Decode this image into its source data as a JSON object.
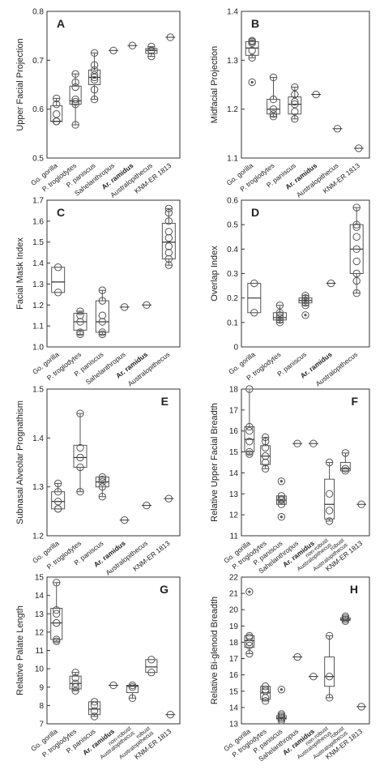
{
  "chart_data": [
    {
      "type": "box",
      "panel": "A",
      "label_corner": "upper left",
      "ylabel": "Upper Facial Projection",
      "bold_category": 4,
      "categories": [
        "Go. gorilla",
        "P. troglodytes",
        "P. paniscus",
        "Sahelanthropus",
        "Ar. ramidus",
        "Australopithecus",
        "KNM-ER 1813"
      ],
      "ylim": [
        0.5,
        0.8
      ],
      "yticks": [
        0.5,
        0.6,
        0.7,
        0.8
      ],
      "groups": [
        {
          "points": [
            0.575,
            0.575,
            0.575,
            0.59,
            0.61,
            0.622
          ],
          "box": [
            0.575,
            0.575,
            0.575,
            0.607,
            0.622
          ]
        },
        {
          "points": [
            0.568,
            0.61,
            0.615,
            0.62,
            0.645,
            0.655,
            0.672
          ],
          "box": [
            0.568,
            0.61,
            0.617,
            0.647,
            0.672
          ]
        },
        {
          "points": [
            0.62,
            0.64,
            0.66,
            0.665,
            0.67,
            0.68,
            0.69,
            0.715
          ],
          "box": [
            0.62,
            0.65,
            0.665,
            0.68,
            0.715
          ]
        },
        {
          "points": [
            0.72
          ]
        },
        {
          "points": [
            0.73
          ]
        },
        {
          "points": [
            0.708,
            0.72,
            0.72,
            0.728
          ],
          "box": [
            0.708,
            0.714,
            0.72,
            0.724,
            0.728
          ]
        },
        {
          "points": [
            0.747
          ]
        }
      ]
    },
    {
      "type": "box",
      "panel": "B",
      "label_corner": "upper left",
      "ylabel": "Midfacial Projection",
      "bold_category": 3,
      "categories": [
        "Go. gorilla",
        "P. troglodytes",
        "P. paniscus",
        "Ar. ramidus",
        "Australopithecus",
        "KNM-ER 1813"
      ],
      "ylim": [
        1.1,
        1.4
      ],
      "yticks": [
        1.1,
        1.2,
        1.3,
        1.4
      ],
      "groups": [
        {
          "points": [
            1.305,
            1.32,
            1.335,
            1.338,
            1.34
          ],
          "outliers": [
            1.255
          ],
          "box": [
            1.305,
            1.31,
            1.325,
            1.338,
            1.34
          ]
        },
        {
          "points": [
            1.185,
            1.19,
            1.2,
            1.22,
            1.265
          ],
          "box": [
            1.185,
            1.19,
            1.2,
            1.22,
            1.265
          ]
        },
        {
          "points": [
            1.18,
            1.195,
            1.21,
            1.215,
            1.23,
            1.245
          ],
          "box": [
            1.18,
            1.19,
            1.21,
            1.225,
            1.245
          ]
        },
        {
          "points": [
            1.23
          ]
        },
        {
          "points": [
            1.16
          ]
        },
        {
          "points": [
            1.12
          ]
        }
      ]
    },
    {
      "type": "box",
      "panel": "C",
      "label_corner": "upper left",
      "ylabel": "Facial Mask Index",
      "bold_category": 4,
      "categories": [
        "Go. gorilla",
        "P. troglodytes",
        "P. paniscus",
        "Sahelanthropus",
        "Ar. ramidus",
        "Australopithecus"
      ],
      "ylim": [
        1.0,
        1.7
      ],
      "yticks": [
        {
          "value": 1.0,
          "label": "1.0"
        },
        1.1,
        1.2,
        1.3,
        1.4,
        1.5,
        1.6,
        1.7
      ],
      "groups": [
        {
          "points": [
            1.26,
            1.38
          ],
          "box": [
            1.26,
            1.26,
            1.31,
            1.38,
            1.38
          ]
        },
        {
          "points": [
            1.06,
            1.07,
            1.12,
            1.15,
            1.17
          ],
          "box": [
            1.06,
            1.08,
            1.12,
            1.16,
            1.17
          ]
        },
        {
          "points": [
            1.06,
            1.07,
            1.12,
            1.15,
            1.22,
            1.27
          ],
          "box": [
            1.06,
            1.07,
            1.12,
            1.22,
            1.27
          ]
        },
        {
          "points": [
            1.19
          ]
        },
        {
          "points": [
            1.2
          ]
        },
        {
          "points": [
            1.39,
            1.42,
            1.45,
            1.48,
            1.52,
            1.55,
            1.6,
            1.64,
            1.66
          ],
          "box": [
            1.39,
            1.42,
            1.5,
            1.59,
            1.66
          ]
        }
      ]
    },
    {
      "type": "box",
      "panel": "D",
      "label_corner": "upper left",
      "ylabel": "Overlap Index",
      "bold_category": 3,
      "categories": [
        "Go. gorilla",
        "P. troglodytes",
        "P. paniscus",
        "Ar. ramidus",
        "Australopithecus"
      ],
      "ylim": [
        0,
        0.6
      ],
      "yticks": [
        0,
        0.1,
        0.2,
        0.3,
        0.4,
        0.5,
        0.6
      ],
      "groups": [
        {
          "points": [
            0.14,
            0.26
          ],
          "box": [
            0.14,
            0.14,
            0.2,
            0.26,
            0.26
          ]
        },
        {
          "points": [
            0.1,
            0.11,
            0.12,
            0.13,
            0.14,
            0.17
          ],
          "box": [
            0.1,
            0.11,
            0.12,
            0.14,
            0.17
          ]
        },
        {
          "points": [
            0.17,
            0.18,
            0.19,
            0.2,
            0.21
          ],
          "outliers": [
            0.13
          ],
          "box": [
            0.17,
            0.18,
            0.19,
            0.2,
            0.21
          ]
        },
        {
          "points": [
            0.26
          ]
        },
        {
          "points": [
            0.22,
            0.27,
            0.3,
            0.35,
            0.4,
            0.45,
            0.49,
            0.5,
            0.57
          ],
          "box": [
            0.22,
            0.3,
            0.4,
            0.5,
            0.57
          ]
        }
      ]
    },
    {
      "type": "box",
      "panel": "E",
      "label_corner": "upper right",
      "ylabel": "Subnasal Alveolar Prognathism",
      "bold_category": 3,
      "categories": [
        "Go. gorilla",
        "P. troglodytes",
        "P. paniscus",
        "Ar. ramidus",
        "Australopithecus",
        "KNM-ER 1813"
      ],
      "ylim": [
        1.2,
        1.5
      ],
      "yticks": [
        1.2,
        1.3,
        1.4,
        1.5
      ],
      "groups": [
        {
          "points": [
            1.255,
            1.255,
            1.27,
            1.29,
            1.307
          ],
          "box": [
            1.255,
            1.255,
            1.27,
            1.29,
            1.307
          ]
        },
        {
          "points": [
            1.29,
            1.34,
            1.36,
            1.38,
            1.45
          ],
          "box": [
            1.29,
            1.34,
            1.36,
            1.385,
            1.45
          ]
        },
        {
          "points": [
            1.28,
            1.3,
            1.31,
            1.315,
            1.32
          ],
          "box": [
            1.28,
            1.3,
            1.31,
            1.32,
            1.32
          ]
        },
        {
          "points": [
            1.232
          ]
        },
        {
          "points": [
            1.262
          ]
        },
        {
          "points": [
            1.276
          ]
        }
      ]
    },
    {
      "type": "box",
      "panel": "F",
      "label_corner": "upper right",
      "ylabel": "Relative Upper Facial Breadth",
      "bold_category": 4,
      "categories": [
        "Go. gorilla",
        "P. troglodytes",
        "P. paniscus",
        "Sahelanthropus",
        "Ar. ramidus",
        [
          "non-robust",
          "Australopithecus"
        ],
        [
          "robust",
          "Australopithecus"
        ],
        "KNM-ER 1813"
      ],
      "ylim": [
        11,
        18
      ],
      "yticks": [
        11,
        12,
        13,
        14,
        15,
        16,
        17,
        18
      ],
      "groups": [
        {
          "points": [
            14.9,
            15,
            15.5,
            16,
            16.2,
            18
          ],
          "box": [
            14.9,
            15,
            15.6,
            16.2,
            18
          ]
        },
        {
          "points": [
            14.2,
            14.5,
            14.8,
            15.2,
            15.5,
            15.7
          ],
          "box": [
            14.2,
            14.4,
            14.8,
            15.3,
            15.7
          ]
        },
        {
          "points": [
            12.5,
            12.7,
            12.75,
            12.9
          ],
          "outliers": [
            13.6,
            11.9
          ],
          "box": [
            12.5,
            12.5,
            12.7,
            12.9,
            12.9
          ]
        },
        {
          "points": [
            15.4
          ]
        },
        {
          "points": [
            15.4
          ]
        },
        {
          "points": [
            11.7,
            12.2,
            13,
            14.5
          ],
          "box": [
            11.7,
            11.8,
            12.5,
            13.7,
            14.5
          ]
        },
        {
          "points": [
            14.1,
            14.2,
            14.95
          ],
          "box": [
            14.1,
            14.1,
            14.2,
            14.5,
            14.95
          ]
        },
        {
          "points": [
            12.5
          ]
        }
      ]
    },
    {
      "type": "box",
      "panel": "G",
      "label_corner": "upper right",
      "ylabel": "Relative Palate Length",
      "bold_category": 3,
      "categories": [
        "Go. gorilla",
        "P. troglodytes",
        "P. paniscus",
        "Ar. ramidus",
        [
          "non-robust",
          "Australopithecus"
        ],
        [
          "robust",
          "Australopithecus"
        ],
        "KNM-ER 1813"
      ],
      "ylim": [
        7,
        15
      ],
      "yticks": [
        7,
        8,
        9,
        10,
        11,
        12,
        13,
        14,
        15
      ],
      "groups": [
        {
          "points": [
            11.5,
            11.6,
            12.5,
            13,
            13.2,
            14.7
          ],
          "box": [
            11.5,
            11.6,
            12.5,
            13.3,
            14.7
          ]
        },
        {
          "points": [
            8.8,
            9,
            9.2,
            9.5,
            9.8
          ],
          "box": [
            8.8,
            8.9,
            9.2,
            9.6,
            9.8
          ]
        },
        {
          "points": [
            7.4,
            7.7,
            8,
            8.2
          ],
          "box": [
            7.4,
            7.5,
            7.8,
            8.2,
            8.2
          ]
        },
        {
          "points": [
            9.1
          ]
        },
        {
          "points": [
            8.4,
            9,
            9.1
          ],
          "box": [
            8.4,
            8.7,
            9.05,
            9.1,
            9.1
          ]
        },
        {
          "points": [
            9.8,
            10.5
          ],
          "box": [
            9.8,
            9.8,
            10.1,
            10.5,
            10.5
          ]
        },
        {
          "points": [
            7.5
          ]
        }
      ]
    },
    {
      "type": "box",
      "panel": "H",
      "label_corner": "upper right",
      "ylabel": "Relative Bi-glenoid Breadth",
      "bold_category": 4,
      "categories": [
        "Go. gorilla",
        "P. troglodytes",
        "P. paniscus",
        "Sahelanthropus",
        "Ar. ramidus",
        [
          "non-robust",
          "Australopithecus"
        ],
        [
          "robust",
          "Australopithecus"
        ],
        "KNM-ER 1813"
      ],
      "ylim": [
        13,
        22
      ],
      "yticks": [
        13,
        14,
        15,
        16,
        17,
        18,
        19,
        20,
        21,
        22
      ],
      "groups": [
        {
          "points": [
            17.3,
            17.8,
            18,
            18.3,
            18.4
          ],
          "outliers": [
            21.1
          ],
          "box": [
            17.3,
            17.7,
            18.1,
            18.4,
            18.4
          ]
        },
        {
          "points": [
            14.4,
            14.6,
            15,
            15.1,
            15.3
          ],
          "box": [
            14.4,
            14.5,
            14.9,
            15.3,
            15.3
          ]
        },
        {
          "points": [
            13.2,
            13.3,
            13.4,
            13.5,
            13.6
          ],
          "outliers": [
            15.1
          ],
          "box": [
            13.2,
            13.3,
            13.35,
            13.5,
            13.6
          ]
        },
        {
          "points": [
            17.1
          ]
        },
        {
          "points": [
            15.9
          ]
        },
        {
          "points": [
            14.6,
            15.9,
            18.4
          ],
          "box": [
            14.6,
            15.3,
            15.9,
            17.1,
            18.4
          ]
        },
        {
          "points": [
            19.3,
            19.4,
            19.5,
            19.6
          ],
          "box": [
            19.3,
            19.35,
            19.4,
            19.5,
            19.6
          ]
        },
        {
          "points": [
            14.05
          ]
        }
      ]
    }
  ]
}
